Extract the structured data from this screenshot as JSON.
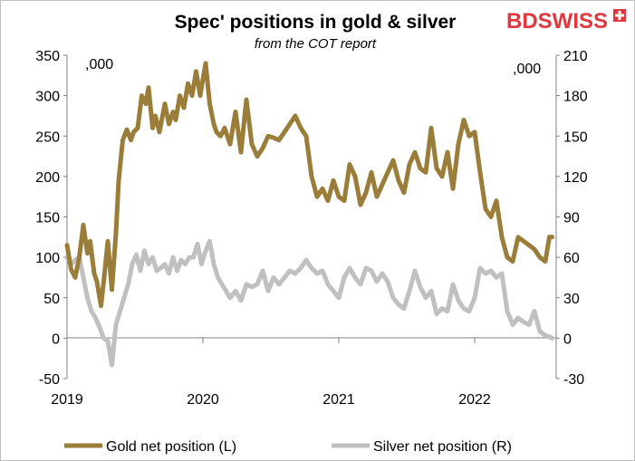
{
  "brand": {
    "name": "BDSWISS"
  },
  "chart_data": {
    "type": "line",
    "title": "Spec' positions in gold & silver",
    "subtitle": "from the COT report",
    "left_unit": ",000",
    "right_unit": ",000",
    "left_axis": {
      "min": -50,
      "max": 350,
      "ticks": [
        -50,
        0,
        50,
        100,
        150,
        200,
        250,
        300,
        350
      ]
    },
    "right_axis": {
      "min": -30,
      "max": 210,
      "ticks": [
        -30,
        0,
        30,
        60,
        90,
        120,
        150,
        180,
        210
      ]
    },
    "x_axis": {
      "min": 2019.0,
      "max": 2022.6,
      "tick_labels": [
        "2019",
        "2020",
        "2021",
        "2022"
      ],
      "tick_values": [
        2019,
        2020,
        2021,
        2022
      ]
    },
    "legend": {
      "placement": "bottom"
    },
    "series": [
      {
        "name": "Gold net position (L)",
        "axis": "left",
        "color": "#9b7d3a",
        "x": [
          2019.0,
          2019.03,
          2019.06,
          2019.09,
          2019.12,
          2019.15,
          2019.17,
          2019.2,
          2019.22,
          2019.25,
          2019.27,
          2019.3,
          2019.33,
          2019.36,
          2019.38,
          2019.41,
          2019.44,
          2019.47,
          2019.49,
          2019.52,
          2019.55,
          2019.58,
          2019.6,
          2019.63,
          2019.65,
          2019.68,
          2019.72,
          2019.75,
          2019.78,
          2019.8,
          2019.83,
          2019.86,
          2019.89,
          2019.92,
          2019.95,
          2019.98,
          2020.02,
          2020.05,
          2020.08,
          2020.1,
          2020.13,
          2020.16,
          2020.2,
          2020.24,
          2020.28,
          2020.32,
          2020.36,
          2020.4,
          2020.44,
          2020.48,
          2020.52,
          2020.56,
          2020.6,
          2020.64,
          2020.68,
          2020.72,
          2020.76,
          2020.8,
          2020.84,
          2020.88,
          2020.92,
          2020.96,
          2021.0,
          2021.04,
          2021.08,
          2021.12,
          2021.16,
          2021.2,
          2021.24,
          2021.28,
          2021.32,
          2021.36,
          2021.4,
          2021.44,
          2021.48,
          2021.52,
          2021.56,
          2021.6,
          2021.64,
          2021.68,
          2021.72,
          2021.76,
          2021.8,
          2021.84,
          2021.88,
          2021.92,
          2021.96,
          2022.0,
          2022.04,
          2022.08,
          2022.12,
          2022.16,
          2022.2,
          2022.24,
          2022.28,
          2022.32,
          2022.36,
          2022.4,
          2022.44,
          2022.48,
          2022.52,
          2022.55,
          2022.57
        ],
        "values": [
          115,
          85,
          75,
          100,
          140,
          105,
          120,
          80,
          70,
          40,
          70,
          120,
          60,
          130,
          195,
          245,
          258,
          245,
          255,
          260,
          300,
          290,
          310,
          260,
          275,
          255,
          290,
          265,
          280,
          270,
          300,
          285,
          315,
          300,
          330,
          300,
          340,
          290,
          265,
          255,
          250,
          260,
          240,
          280,
          230,
          295,
          240,
          225,
          235,
          250,
          248,
          245,
          255,
          265,
          275,
          260,
          250,
          200,
          175,
          185,
          170,
          195,
          175,
          170,
          215,
          200,
          165,
          180,
          205,
          175,
          190,
          205,
          220,
          195,
          180,
          215,
          230,
          210,
          205,
          260,
          210,
          200,
          230,
          185,
          240,
          270,
          250,
          255,
          205,
          160,
          150,
          170,
          125,
          100,
          95,
          125,
          120,
          115,
          110,
          100,
          95,
          125,
          125
        ]
      },
      {
        "name": "Silver net position (R)",
        "axis": "right",
        "color": "#c0c0c0",
        "x": [
          2019.0,
          2019.03,
          2019.06,
          2019.09,
          2019.12,
          2019.15,
          2019.18,
          2019.21,
          2019.24,
          2019.27,
          2019.3,
          2019.33,
          2019.36,
          2019.39,
          2019.42,
          2019.45,
          2019.48,
          2019.51,
          2019.54,
          2019.57,
          2019.6,
          2019.63,
          2019.66,
          2019.69,
          2019.72,
          2019.75,
          2019.78,
          2019.81,
          2019.84,
          2019.87,
          2019.9,
          2019.93,
          2019.96,
          2019.99,
          2020.02,
          2020.05,
          2020.08,
          2020.11,
          2020.14,
          2020.17,
          2020.2,
          2020.24,
          2020.28,
          2020.32,
          2020.36,
          2020.4,
          2020.44,
          2020.48,
          2020.52,
          2020.56,
          2020.6,
          2020.64,
          2020.68,
          2020.72,
          2020.76,
          2020.8,
          2020.84,
          2020.88,
          2020.92,
          2020.96,
          2021.0,
          2021.04,
          2021.08,
          2021.12,
          2021.16,
          2021.2,
          2021.24,
          2021.28,
          2021.32,
          2021.36,
          2021.4,
          2021.44,
          2021.48,
          2021.52,
          2021.56,
          2021.6,
          2021.64,
          2021.68,
          2021.72,
          2021.76,
          2021.8,
          2021.84,
          2021.88,
          2021.92,
          2021.96,
          2022.0,
          2022.04,
          2022.08,
          2022.12,
          2022.16,
          2022.2,
          2022.24,
          2022.28,
          2022.32,
          2022.36,
          2022.4,
          2022.44,
          2022.48,
          2022.52,
          2022.55,
          2022.57
        ],
        "values": [
          60,
          55,
          58,
          60,
          45,
          30,
          20,
          15,
          8,
          0,
          -2,
          -20,
          10,
          20,
          30,
          40,
          55,
          62,
          50,
          65,
          55,
          60,
          50,
          52,
          55,
          48,
          60,
          50,
          58,
          55,
          60,
          60,
          70,
          55,
          65,
          72,
          55,
          45,
          40,
          35,
          30,
          35,
          28,
          40,
          38,
          40,
          50,
          35,
          45,
          40,
          45,
          50,
          48,
          52,
          58,
          52,
          48,
          50,
          40,
          35,
          30,
          45,
          52,
          45,
          40,
          52,
          50,
          42,
          48,
          42,
          30,
          25,
          22,
          35,
          50,
          38,
          30,
          35,
          18,
          22,
          20,
          40,
          28,
          22,
          20,
          30,
          52,
          48,
          50,
          45,
          48,
          20,
          10,
          15,
          12,
          10,
          20,
          5,
          2,
          1,
          0
        ]
      }
    ]
  }
}
